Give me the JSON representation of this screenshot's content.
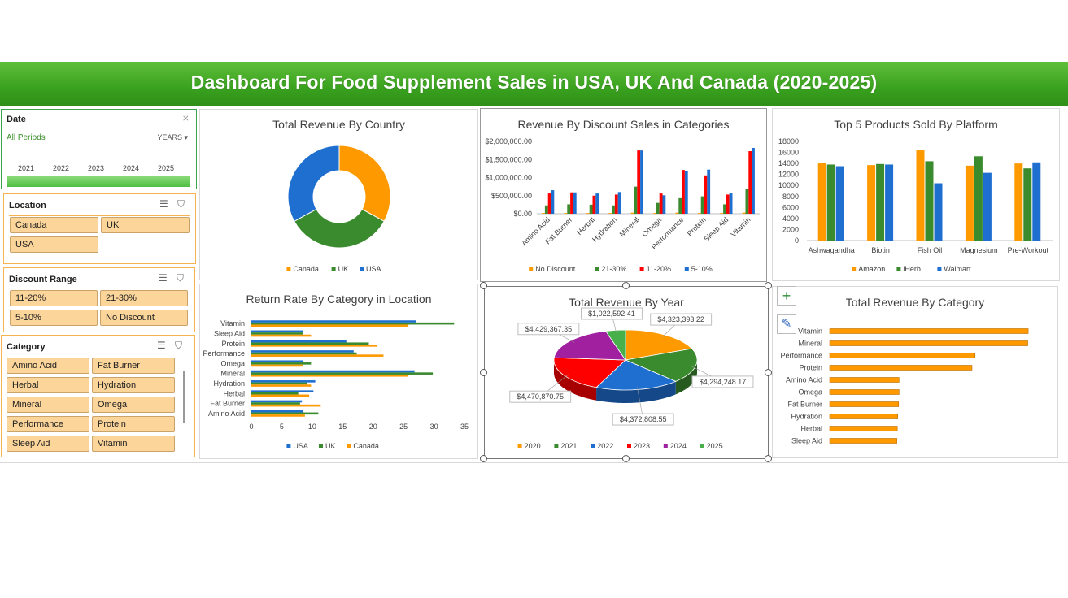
{
  "title": "Dashboard For Food Supplement Sales in USA, UK And Canada (2020-2025)",
  "slicers": {
    "date": {
      "header": "Date",
      "all_periods": "All Periods",
      "level": "YEARS",
      "years": [
        "2021",
        "2022",
        "2023",
        "2024",
        "2025"
      ]
    },
    "location": {
      "header": "Location",
      "items": [
        "Canada",
        "UK",
        "USA"
      ]
    },
    "discount": {
      "header": "Discount Range",
      "items": [
        "11-20%",
        "21-30%",
        "5-10%",
        "No Discount"
      ]
    },
    "category": {
      "header": "Category",
      "items": [
        "Amino Acid",
        "Fat Burner",
        "Herbal",
        "Hydration",
        "Mineral",
        "Omega",
        "Performance",
        "Protein",
        "Sleep Aid",
        "Vitamin"
      ]
    }
  },
  "colors": {
    "orange": "#ff9900",
    "green": "#3a8a2e",
    "blue": "#1f6fd1",
    "red": "#ff0000",
    "purple": "#a020a0",
    "lightgreen": "#48b04a"
  },
  "chart_data": [
    {
      "type": "pie",
      "title": "Total Revenue By Country",
      "donut": true,
      "categories": [
        "Canada",
        "UK",
        "USA"
      ],
      "values": [
        33,
        34,
        33
      ],
      "colors": [
        "#ff9900",
        "#3a8a2e",
        "#1f6fd1"
      ]
    },
    {
      "type": "bar",
      "title": "Revenue By Discount Sales in Categories",
      "categories": [
        "Amino Acid",
        "Fat Burner",
        "Herbal",
        "Hydration",
        "Mineral",
        "Omega",
        "Performance",
        "Protein",
        "Sleep Aid",
        "Vitamin"
      ],
      "series": [
        {
          "name": "No Discount",
          "color": "#ff9900",
          "values": [
            20000,
            20000,
            20000,
            20000,
            30000,
            20000,
            30000,
            20000,
            20000,
            30000
          ]
        },
        {
          "name": "21-30%",
          "color": "#3a8a2e",
          "values": [
            230000,
            260000,
            250000,
            230000,
            750000,
            300000,
            430000,
            480000,
            260000,
            690000
          ]
        },
        {
          "name": "11-20%",
          "color": "#ff0000",
          "values": [
            560000,
            590000,
            500000,
            530000,
            1750000,
            560000,
            1210000,
            1060000,
            530000,
            1730000
          ]
        },
        {
          "name": "5-10%",
          "color": "#1f6fd1",
          "values": [
            650000,
            590000,
            560000,
            600000,
            1750000,
            510000,
            1190000,
            1220000,
            570000,
            1820000
          ]
        }
      ],
      "yticks": [
        "$0.00",
        "$500,000.00",
        "$1,000,000.00",
        "$1,500,000.00",
        "$2,000,000.00"
      ],
      "ylim": [
        0,
        2000000
      ]
    },
    {
      "type": "bar",
      "title": "Top 5 Products Sold By Platform",
      "categories": [
        "Ashwagandha",
        "Biotin",
        "Fish Oil",
        "Magnesium",
        "Pre-Workout"
      ],
      "series": [
        {
          "name": "Amazon",
          "color": "#ff9900",
          "values": [
            14100,
            13700,
            16500,
            13600,
            14000
          ]
        },
        {
          "name": "iHerb",
          "color": "#3a8a2e",
          "values": [
            13800,
            13900,
            14400,
            15300,
            13100
          ]
        },
        {
          "name": "Walmart",
          "color": "#1f6fd1",
          "values": [
            13500,
            13800,
            10400,
            12300,
            14200
          ]
        }
      ],
      "yticks": [
        "0",
        "2000",
        "4000",
        "6000",
        "8000",
        "10000",
        "12000",
        "14000",
        "16000",
        "18000"
      ],
      "ylim": [
        0,
        18000
      ]
    },
    {
      "type": "bar",
      "orientation": "horizontal",
      "title": "Return Rate By Category in Location",
      "categories": [
        "Amino Acid",
        "Fat Burner",
        "Herbal",
        "Hydration",
        "Mineral",
        "Omega",
        "Performance",
        "Protein",
        "Sleep Aid",
        "Vitamin"
      ],
      "series": [
        {
          "name": "USA",
          "color": "#1f6fd1",
          "values": [
            8.5,
            8.3,
            10.2,
            10.5,
            26.8,
            8.5,
            16.8,
            15.6,
            8.5,
            27.0
          ]
        },
        {
          "name": "UK",
          "color": "#3a8a2e",
          "values": [
            11.0,
            8.0,
            7.7,
            9.2,
            29.8,
            9.8,
            17.3,
            19.3,
            8.5,
            33.3
          ]
        },
        {
          "name": "Canada",
          "color": "#ff9900",
          "values": [
            8.8,
            11.4,
            9.5,
            9.8,
            25.8,
            8.5,
            21.7,
            20.7,
            9.8,
            25.8
          ]
        }
      ],
      "xticks": [
        "0",
        "5",
        "10",
        "15",
        "20",
        "25",
        "30",
        "35"
      ],
      "xlim": [
        0,
        35
      ]
    },
    {
      "type": "pie",
      "title": "Total Revenue By Year",
      "style": "3d",
      "categories": [
        "2020",
        "2021",
        "2022",
        "2023",
        "2024",
        "2025"
      ],
      "values": [
        4323393.22,
        4294248.17,
        4372808.55,
        4470870.75,
        4429367.35,
        1022592.41
      ],
      "labels": [
        "$4,323,393.22",
        "$4,294,248.17",
        "$4,372,808.55",
        "$4,470,870.75",
        "$4,429,367.35",
        "$1,022,592.41"
      ],
      "colors": [
        "#ff9900",
        "#3a8a2e",
        "#1f6fd1",
        "#ff0000",
        "#a020a0",
        "#48b04a"
      ]
    },
    {
      "type": "bar",
      "orientation": "horizontal",
      "title": "Total Revenue By Category",
      "categories": [
        "Vitamin",
        "Mineral",
        "Performance",
        "Protein",
        "Amino Acid",
        "Omega",
        "Fat Burner",
        "Hydration",
        "Herbal",
        "Sleep Aid"
      ],
      "values": [
        4520000,
        4510000,
        3310000,
        3240000,
        1580000,
        1580000,
        1570000,
        1550000,
        1540000,
        1530000
      ],
      "color": "#ff9900",
      "xlim": [
        0,
        5000000
      ]
    }
  ]
}
